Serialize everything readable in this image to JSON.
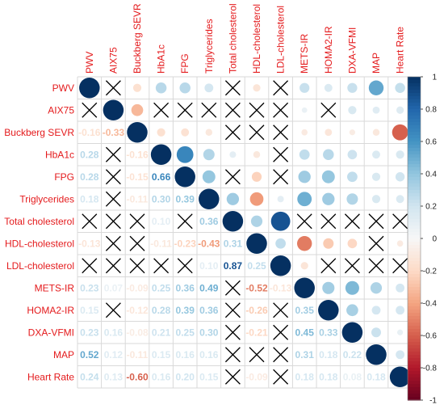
{
  "chart_data": {
    "type": "heatmap",
    "variables": [
      "PWV",
      "AIX75",
      "Buckberg SEVR",
      "HbA1c",
      "FPG",
      "Triglycerides",
      "Total cholesterol",
      "HDL-cholesterol",
      "LDL-cholesterol",
      "METS-IR",
      "HOMA2-IR",
      "DXA-VFMI",
      "MAP",
      "Heart Rate"
    ],
    "matrix": [
      [
        1.0,
        null,
        -0.16,
        0.28,
        0.28,
        0.18,
        null,
        -0.13,
        null,
        0.23,
        0.15,
        0.23,
        0.52,
        0.24
      ],
      [
        null,
        1.0,
        -0.33,
        null,
        null,
        null,
        null,
        null,
        null,
        0.07,
        null,
        0.16,
        0.12,
        0.13
      ],
      [
        -0.16,
        -0.33,
        1.0,
        -0.16,
        -0.15,
        -0.11,
        null,
        null,
        null,
        -0.09,
        -0.12,
        -0.08,
        -0.11,
        -0.6
      ],
      [
        0.28,
        null,
        -0.16,
        1.0,
        0.66,
        0.3,
        0.1,
        -0.11,
        null,
        0.25,
        0.28,
        0.21,
        0.15,
        0.16
      ],
      [
        0.28,
        null,
        -0.15,
        0.66,
        1.0,
        0.39,
        null,
        -0.23,
        null,
        0.36,
        0.39,
        0.25,
        0.16,
        0.2
      ],
      [
        0.18,
        null,
        -0.11,
        0.3,
        0.39,
        1.0,
        0.36,
        -0.43,
        0.1,
        0.49,
        0.36,
        0.3,
        0.16,
        0.15
      ],
      [
        null,
        null,
        null,
        0.1,
        null,
        0.36,
        1.0,
        0.31,
        0.87,
        null,
        null,
        null,
        null,
        null
      ],
      [
        -0.13,
        null,
        null,
        -0.11,
        -0.23,
        -0.43,
        0.31,
        1.0,
        0.25,
        -0.52,
        -0.26,
        -0.21,
        null,
        -0.09
      ],
      [
        null,
        null,
        null,
        null,
        null,
        0.1,
        0.87,
        0.25,
        1.0,
        -0.13,
        null,
        null,
        null,
        null
      ],
      [
        0.23,
        0.07,
        -0.09,
        0.25,
        0.36,
        0.49,
        null,
        -0.52,
        -0.13,
        1.0,
        0.35,
        0.45,
        0.31,
        0.18
      ],
      [
        0.15,
        null,
        -0.12,
        0.28,
        0.39,
        0.36,
        null,
        -0.26,
        null,
        0.35,
        1.0,
        0.33,
        0.18,
        0.18
      ],
      [
        0.23,
        0.16,
        -0.08,
        0.21,
        0.25,
        0.3,
        null,
        -0.21,
        null,
        0.45,
        0.33,
        1.0,
        0.22,
        0.08
      ],
      [
        0.52,
        0.12,
        -0.11,
        0.15,
        0.16,
        0.16,
        null,
        null,
        null,
        0.31,
        0.18,
        0.22,
        1.0,
        0.18
      ],
      [
        0.24,
        0.13,
        -0.6,
        0.16,
        0.2,
        0.15,
        null,
        -0.09,
        null,
        0.18,
        0.18,
        0.08,
        0.18,
        1.0
      ]
    ],
    "lower_triangle": "numbers",
    "upper_triangle": "circles",
    "non_significant_marker": "cross",
    "colorbar": {
      "range": [
        -1,
        1
      ],
      "ticks": [
        "1",
        "0.8",
        "0.6",
        "0.4",
        "0.2",
        "0",
        "-0.2",
        "-0.4",
        "-0.6",
        "-0.8",
        "-1"
      ],
      "colors": {
        "positive": "#053061",
        "zero": "#f7f7f7",
        "negative": "#67001f"
      }
    },
    "label_color": "#e41a1c",
    "grid": true
  }
}
